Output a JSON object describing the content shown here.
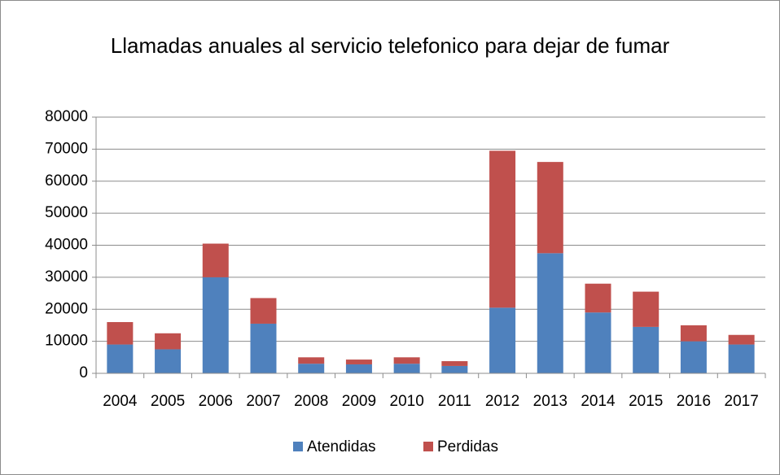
{
  "chart_data": {
    "type": "stacked_bar",
    "title": "Llamadas anuales al servicio telefonico para dejar de fumar",
    "categories": [
      "2004",
      "2005",
      "2006",
      "2007",
      "2008",
      "2009",
      "2010",
      "2011",
      "2012",
      "2013",
      "2014",
      "2015",
      "2016",
      "2017"
    ],
    "series": [
      {
        "name": "Atendidas",
        "color": "#4f81bd",
        "values": [
          9000,
          7500,
          30000,
          15500,
          3000,
          2800,
          3000,
          2300,
          20500,
          37500,
          19000,
          14500,
          10000,
          9000
        ]
      },
      {
        "name": "Perdidas",
        "color": "#c0504d",
        "values": [
          7000,
          5000,
          10500,
          8000,
          2000,
          1500,
          2000,
          1500,
          49000,
          28500,
          9000,
          11000,
          5000,
          3000
        ]
      }
    ],
    "ylim": [
      0,
      80000
    ],
    "yticks": [
      0,
      10000,
      20000,
      30000,
      40000,
      50000,
      60000,
      70000,
      80000
    ],
    "grid": true,
    "legend": "bottom"
  }
}
